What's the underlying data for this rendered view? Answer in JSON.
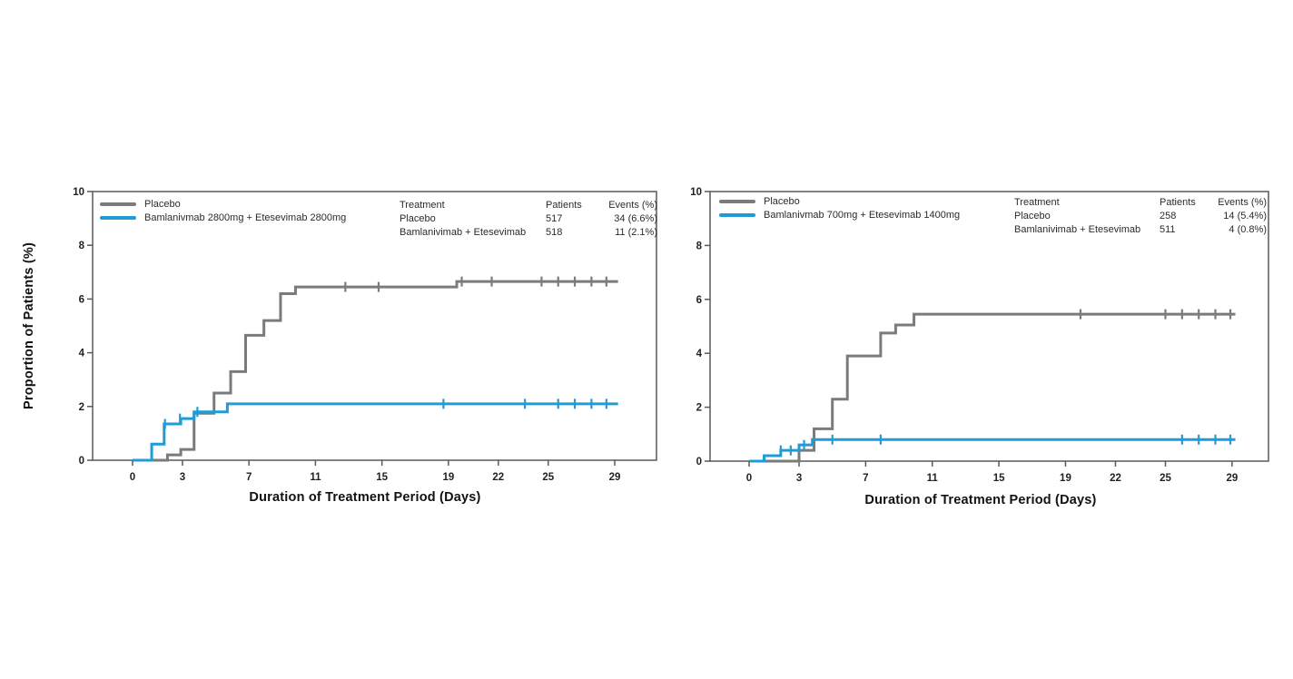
{
  "y_axis_label": "Proportion of Patients (%)",
  "x_axis_label": "Duration of Treatment Period (Days)",
  "colors": {
    "placebo": "#7b7b7b",
    "combo": "#1f9cd8",
    "frame": "#58595b",
    "tick_text": "#231f20",
    "label_text": "#111111"
  },
  "chart_data": [
    {
      "type": "line",
      "variant": "kaplan-meier-step",
      "title": "",
      "xlabel": "Duration of Treatment Period (Days)",
      "ylabel": "Proportion of Patients (%)",
      "x_ticks": [
        0,
        3,
        7,
        11,
        15,
        19,
        22,
        25,
        29
      ],
      "y_ticks": [
        0,
        2,
        4,
        6,
        8,
        10
      ],
      "xlim": [
        0,
        29
      ],
      "ylim": [
        0,
        10
      ],
      "legend": [
        {
          "label": "Placebo",
          "series": "placebo"
        },
        {
          "label": "Bamlanivmab 2800mg + Etesevimab 2800mg",
          "series": "combo"
        }
      ],
      "stats_table": {
        "headers": [
          "Treatment",
          "Patients",
          "Events (%)"
        ],
        "rows": [
          [
            "Placebo",
            "517",
            "34 (6.6%)"
          ],
          [
            "Bamlanivimab + Etesevimab",
            "518",
            "11 (2.1%)"
          ]
        ]
      },
      "series": [
        {
          "name": "Placebo",
          "color": "placebo",
          "end_day": 29.2,
          "steps": [
            [
              0,
              0
            ],
            [
              2.1,
              0.2
            ],
            [
              2.9,
              0.4
            ],
            [
              3.7,
              1.75
            ],
            [
              4.9,
              2.5
            ],
            [
              5.9,
              3.3
            ],
            [
              6.8,
              4.65
            ],
            [
              7.9,
              5.2
            ],
            [
              8.9,
              6.2
            ],
            [
              9.8,
              6.45
            ],
            [
              19.5,
              6.65
            ]
          ],
          "censors": [
            [
              12.8,
              6.45
            ],
            [
              14.8,
              6.45
            ],
            [
              19.8,
              6.65
            ],
            [
              21.6,
              6.65
            ],
            [
              24.6,
              6.65
            ],
            [
              25.6,
              6.65
            ],
            [
              26.6,
              6.65
            ],
            [
              27.6,
              6.65
            ],
            [
              28.5,
              6.65
            ]
          ]
        },
        {
          "name": "Bamlanivmab 2800mg + Etesevimab 2800mg",
          "color": "combo",
          "end_day": 29.2,
          "steps": [
            [
              0,
              0
            ],
            [
              1.15,
              0.6
            ],
            [
              1.9,
              1.35
            ],
            [
              2.9,
              1.55
            ],
            [
              3.7,
              1.8
            ],
            [
              5.7,
              2.1
            ]
          ],
          "censors": [
            [
              1.95,
              1.35
            ],
            [
              2.85,
              1.55
            ],
            [
              3.9,
              1.8
            ],
            [
              18.7,
              2.1
            ],
            [
              23.6,
              2.1
            ],
            [
              25.6,
              2.1
            ],
            [
              26.6,
              2.1
            ],
            [
              27.6,
              2.1
            ],
            [
              28.5,
              2.1
            ]
          ]
        }
      ]
    },
    {
      "type": "line",
      "variant": "kaplan-meier-step",
      "title": "",
      "xlabel": "Duration of Treatment Period (Days)",
      "ylabel": "Proportion of Patients (%)",
      "x_ticks": [
        0,
        3,
        7,
        11,
        15,
        19,
        22,
        25,
        29
      ],
      "y_ticks": [
        0,
        2,
        4,
        6,
        8,
        10
      ],
      "xlim": [
        0,
        29
      ],
      "ylim": [
        0,
        10
      ],
      "legend": [
        {
          "label": "Placebo",
          "series": "placebo"
        },
        {
          "label": "Bamlanivmab 700mg + Etesevimab 1400mg",
          "series": "combo"
        }
      ],
      "stats_table": {
        "headers": [
          "Treatment",
          "Patients",
          "Events (%)"
        ],
        "rows": [
          [
            "Placebo",
            "258",
            "14 (5.4%)"
          ],
          [
            "Bamlanivimab + Etesevimab",
            "511",
            "4 (0.8%)"
          ]
        ]
      },
      "series": [
        {
          "name": "Placebo",
          "color": "placebo",
          "end_day": 29.2,
          "steps": [
            [
              0,
              0
            ],
            [
              3.0,
              0.4
            ],
            [
              3.9,
              1.2
            ],
            [
              5.0,
              2.3
            ],
            [
              5.9,
              3.9
            ],
            [
              7.9,
              4.75
            ],
            [
              8.8,
              5.05
            ],
            [
              9.9,
              5.45
            ]
          ],
          "censors": [
            [
              19.9,
              5.45
            ],
            [
              25.0,
              5.45
            ],
            [
              26.0,
              5.45
            ],
            [
              27.0,
              5.45
            ],
            [
              28.0,
              5.45
            ],
            [
              28.9,
              5.45
            ]
          ]
        },
        {
          "name": "Bamlanivmab 700mg + Etesevimab 1400mg",
          "color": "combo",
          "end_day": 29.2,
          "steps": [
            [
              0,
              0
            ],
            [
              0.9,
              0.2
            ],
            [
              1.9,
              0.4
            ],
            [
              3.0,
              0.6
            ],
            [
              3.8,
              0.8
            ]
          ],
          "censors": [
            [
              1.9,
              0.4
            ],
            [
              2.5,
              0.4
            ],
            [
              3.3,
              0.6
            ],
            [
              5.0,
              0.8
            ],
            [
              7.9,
              0.8
            ],
            [
              26.0,
              0.8
            ],
            [
              27.0,
              0.8
            ],
            [
              28.0,
              0.8
            ],
            [
              28.9,
              0.8
            ]
          ]
        }
      ]
    }
  ]
}
